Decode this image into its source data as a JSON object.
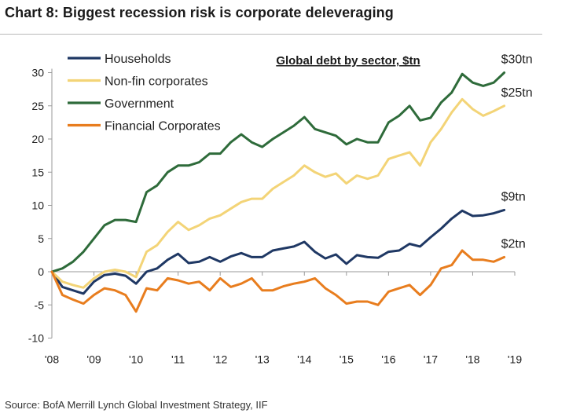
{
  "title": "Chart 8: Biggest recession risk is corporate deleveraging",
  "source": "Source: BofA Merrill Lynch Global Investment Strategy, IIF",
  "chart_data": {
    "type": "line",
    "title": "Global debt by sector, $tn",
    "xlabel": "",
    "ylabel": "",
    "xlim": [
      2008,
      2019
    ],
    "ylim": [
      -10,
      32
    ],
    "yticks": [
      -10,
      -5,
      0,
      5,
      10,
      15,
      20,
      25,
      30
    ],
    "xticks": [
      {
        "label": "'08",
        "value": 2008
      },
      {
        "label": "'09",
        "value": 2009
      },
      {
        "label": "'10",
        "value": 2010
      },
      {
        "label": "'11",
        "value": 2011
      },
      {
        "label": "'12",
        "value": 2012
      },
      {
        "label": "'13",
        "value": 2013
      },
      {
        "label": "'14",
        "value": 2014
      },
      {
        "label": "'15",
        "value": 2015
      },
      {
        "label": "'16",
        "value": 2016
      },
      {
        "label": "'17",
        "value": 2017
      },
      {
        "label": "'18",
        "value": 2018
      },
      {
        "label": "'19",
        "value": 2019
      }
    ],
    "x": [
      2008.0,
      2008.25,
      2008.5,
      2008.75,
      2009.0,
      2009.25,
      2009.5,
      2009.75,
      2010.0,
      2010.25,
      2010.5,
      2010.75,
      2011.0,
      2011.25,
      2011.5,
      2011.75,
      2012.0,
      2012.25,
      2012.5,
      2012.75,
      2013.0,
      2013.25,
      2013.5,
      2013.75,
      2014.0,
      2014.25,
      2014.5,
      2014.75,
      2015.0,
      2015.25,
      2015.5,
      2015.75,
      2016.0,
      2016.25,
      2016.5,
      2016.75,
      2017.0,
      2017.25,
      2017.5,
      2017.75,
      2018.0,
      2018.25,
      2018.5,
      2018.75
    ],
    "series": [
      {
        "name": "Households",
        "color": "#1f3864",
        "end_label": "$9tn",
        "values": [
          0,
          -2.3,
          -2.8,
          -3.3,
          -1.5,
          -0.5,
          -0.3,
          -0.6,
          -1.8,
          0.0,
          0.5,
          1.8,
          2.7,
          1.3,
          1.5,
          2.2,
          1.5,
          2.3,
          2.8,
          2.2,
          2.2,
          3.2,
          3.5,
          3.8,
          4.5,
          3.0,
          2.0,
          2.6,
          1.2,
          2.5,
          2.2,
          2.1,
          3.0,
          3.2,
          4.2,
          3.8,
          5.2,
          6.5,
          8.0,
          9.2,
          8.4,
          8.5,
          8.8,
          9.3
        ]
      },
      {
        "name": "Non-fin corporates",
        "color": "#f3d477",
        "end_label": "$25tn",
        "values": [
          0,
          -1.5,
          -2.0,
          -2.4,
          -1.0,
          0.0,
          0.3,
          0.0,
          -0.8,
          3.0,
          4.0,
          6.0,
          7.5,
          6.3,
          7.0,
          8.0,
          8.5,
          9.5,
          10.5,
          11.0,
          11.0,
          12.5,
          13.5,
          14.5,
          16.0,
          15.0,
          14.3,
          14.8,
          13.3,
          14.5,
          14.0,
          14.5,
          17.0,
          17.5,
          18.0,
          16.0,
          19.5,
          21.5,
          24.0,
          26.0,
          24.5,
          23.5,
          24.2,
          25.0
        ]
      },
      {
        "name": "Government",
        "color": "#2e6b3a",
        "end_label": "$30tn",
        "values": [
          0,
          0.5,
          1.5,
          3.0,
          5.0,
          7.0,
          7.8,
          7.8,
          7.5,
          12.0,
          13.0,
          15.0,
          16.0,
          16.0,
          16.5,
          17.8,
          17.8,
          19.5,
          20.7,
          19.5,
          18.8,
          20.0,
          21.0,
          22.0,
          23.3,
          21.5,
          21.0,
          20.5,
          19.2,
          20.0,
          19.5,
          19.5,
          22.5,
          23.5,
          25.0,
          22.8,
          23.2,
          25.5,
          27.0,
          29.8,
          28.5,
          28.0,
          28.5,
          30.0
        ]
      },
      {
        "name": "Financial Corporates",
        "color": "#e87d1e",
        "end_label": "$2tn",
        "values": [
          0,
          -3.5,
          -4.2,
          -4.8,
          -3.5,
          -2.5,
          -2.8,
          -3.5,
          -6.0,
          -2.5,
          -2.8,
          -1.0,
          -1.3,
          -1.8,
          -1.5,
          -2.8,
          -1.0,
          -2.3,
          -1.8,
          -1.0,
          -2.8,
          -2.8,
          -2.2,
          -1.8,
          -1.5,
          -1.0,
          -2.5,
          -3.5,
          -4.8,
          -4.5,
          -4.5,
          -5.0,
          -3.0,
          -2.5,
          -2.0,
          -3.5,
          -2.0,
          0.5,
          1.0,
          3.2,
          1.8,
          1.8,
          1.5,
          2.2
        ]
      }
    ],
    "legend_position": "top-left",
    "grid": false
  }
}
